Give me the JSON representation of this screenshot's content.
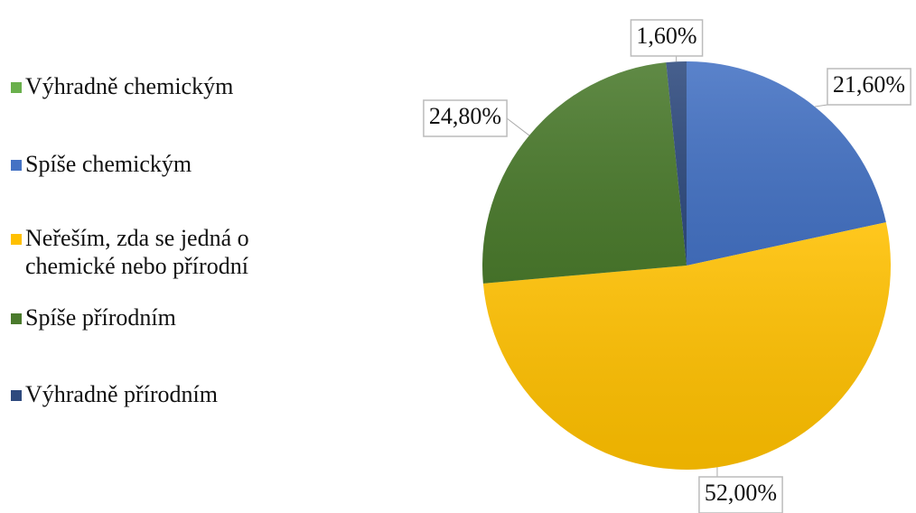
{
  "chart_data": {
    "type": "pie",
    "categories": [
      "Výhradně chemickým",
      "Spíše chemickým",
      "Neřeším, zda se jedná o chemické nebo přírodní",
      "Spíše přírodním",
      "Výhradně přírodním"
    ],
    "values": [
      0,
      21.6,
      52,
      24.8,
      1.6
    ],
    "value_labels": [
      null,
      "21,60%",
      "52,00%",
      "24,80%",
      "1,60%"
    ],
    "colors": [
      "#6ab04c",
      "#4472c4",
      "#ffc000",
      "#4a7a2c",
      "#2e4a7e"
    ],
    "legend": "left"
  }
}
